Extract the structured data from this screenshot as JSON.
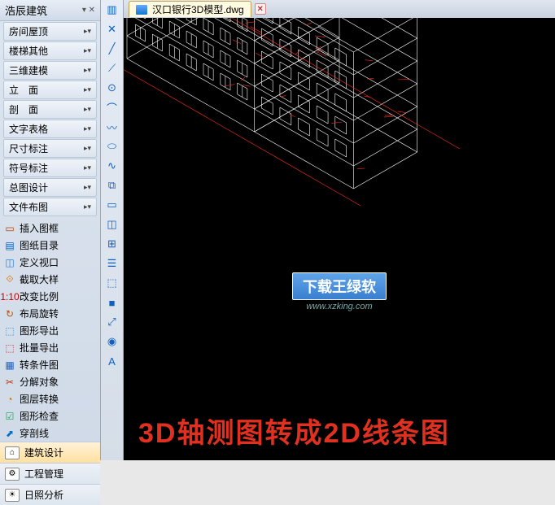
{
  "panel_title": "浩辰建筑",
  "dropdown_items": [
    "房间屋顶",
    "楼梯其他",
    "三维建模",
    "立　面",
    "剖　面",
    "文字表格",
    "尺寸标注",
    "符号标注",
    "总图设计",
    "文件布图"
  ],
  "tools": [
    {
      "icon": "▭",
      "color": "#c04000",
      "label": "插入图框"
    },
    {
      "icon": "▤",
      "color": "#0060c0",
      "label": "图纸目录"
    },
    {
      "icon": "◫",
      "color": "#2080e0",
      "label": "定义视口"
    },
    {
      "icon": "⟐",
      "color": "#e07000",
      "label": "截取大样"
    },
    {
      "icon": "1:10",
      "color": "#c00000",
      "label": "改变比例"
    },
    {
      "icon": "↻",
      "color": "#c05000",
      "label": "布局旋转"
    },
    {
      "icon": "⬚",
      "color": "#3090d0",
      "label": "图形导出"
    },
    {
      "icon": "⬚",
      "color": "#d03030",
      "label": "批量导出"
    },
    {
      "icon": "▦",
      "color": "#2060c0",
      "label": "转条件图"
    },
    {
      "icon": "✂",
      "color": "#c03000",
      "label": "分解对象"
    },
    {
      "icon": "◔",
      "color": "#c08000",
      "label": "图层转换"
    },
    {
      "icon": "☑",
      "color": "#20a060",
      "label": "图形检查"
    },
    {
      "icon": "⬈",
      "color": "#0070c0",
      "label": "穿剖线"
    }
  ],
  "modes": [
    {
      "icon": "⌂",
      "label": "建筑设计",
      "active": true
    },
    {
      "icon": "⚙",
      "label": "工程管理",
      "active": false
    },
    {
      "icon": "☀",
      "label": "日照分析",
      "active": false
    }
  ],
  "toolstrip": [
    "▥",
    "✕",
    "╱",
    "⟋",
    "⊙",
    "⌒",
    "〰",
    "⬭",
    "∿",
    "⧉",
    "▭",
    "◫",
    "⊞",
    "☰",
    "⬚",
    "■",
    "⤢",
    "◉",
    "A"
  ],
  "file_tab": "汉口银行3D模型.dwg",
  "watermark_text": "下载王绿软",
  "watermark_url": "www.xzking.com",
  "caption": "3D轴测图转成2D线条图",
  "building": {
    "line_color": "#ffffff",
    "accent_color": "#ff2020",
    "bg": "#000000"
  }
}
